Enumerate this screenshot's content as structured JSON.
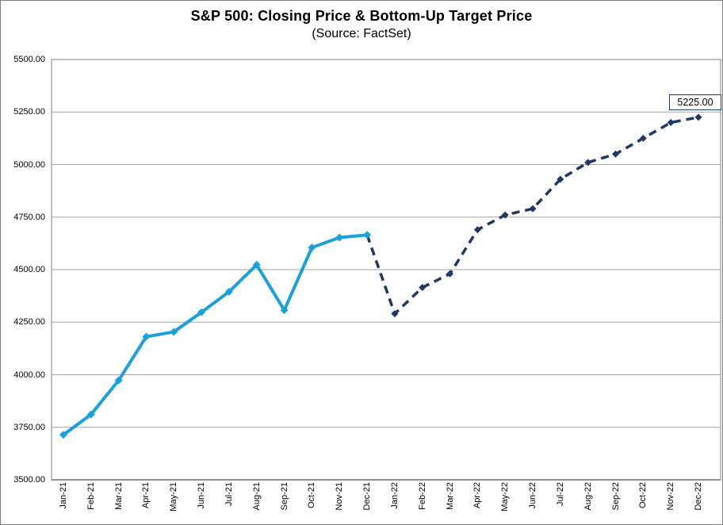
{
  "header": {
    "title": "S&P 500: Closing Price & Bottom-Up Target Price",
    "subtitle": "(Source: FactSet)"
  },
  "chart_data": {
    "type": "line",
    "categories": [
      "Jan-21",
      "Feb-21",
      "Mar-21",
      "Apr-21",
      "May-21",
      "Jun-21",
      "Jul-21",
      "Aug-21",
      "Sep-21",
      "Oct-21",
      "Nov-21",
      "Dec-21",
      "Jan-22",
      "Feb-22",
      "Mar-22",
      "Apr-22",
      "May-22",
      "Jun-22",
      "Jul-22",
      "Aug-22",
      "Sep-22",
      "Oct-22",
      "Nov-22",
      "Dec-22"
    ],
    "y_axis": {
      "min": 3500,
      "max": 5500,
      "step": 250,
      "decimals": 2
    },
    "series": [
      {
        "name": "Bottom-Up Target Price",
        "line_style": "dashed",
        "color": "#1f3864",
        "start_index": 11,
        "values": [
          4665,
          4290,
          4415,
          4480,
          4690,
          4760,
          4790,
          4930,
          5010,
          5050,
          5125,
          5200,
          5225
        ]
      },
      {
        "name": "Closing Price",
        "line_style": "solid",
        "color": "#1ba0de",
        "start_index": 0,
        "values": [
          3714,
          3811,
          3973,
          4181,
          4204,
          4297,
          4395,
          4523,
          4307,
          4605,
          4653,
          4665
        ]
      }
    ],
    "annotation": {
      "text": "5225.00",
      "category": "Dec-22",
      "value": 5225
    },
    "grid": "horizontal",
    "legend": "none",
    "colors": {
      "gridline": "#a6a6a6",
      "plot_border": "#808080",
      "axis_line": "#6e6e6e",
      "text": "#000000",
      "background": "#ffffff"
    }
  }
}
